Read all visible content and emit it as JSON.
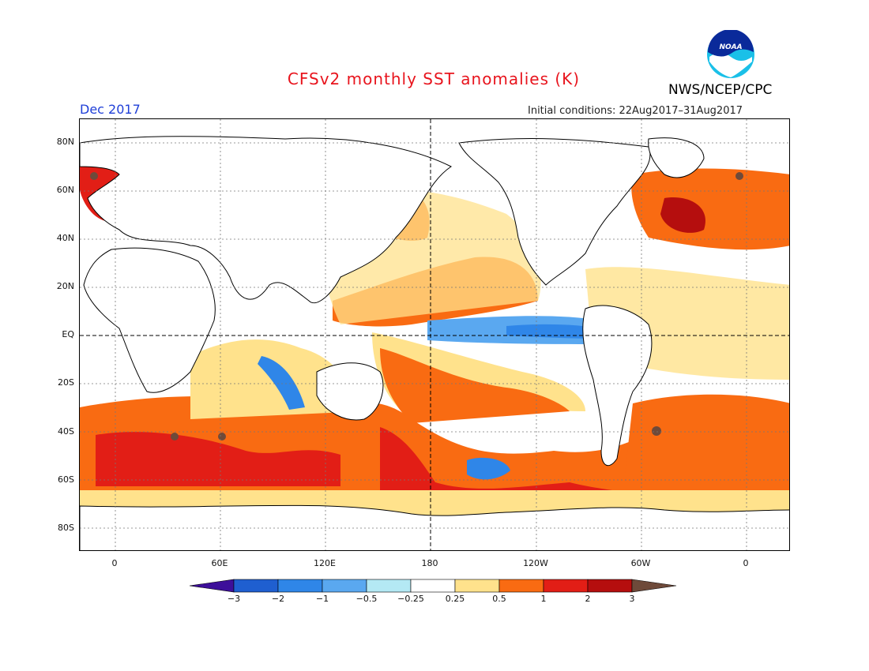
{
  "title": "CFSv2 monthly SST anomalies (K)",
  "agency": "NWS/NCEP/CPC",
  "logo_text": "NOAA",
  "valid_month": "Dec 2017",
  "initial_conditions": "Initial conditions: 22Aug2017–31Aug2017",
  "lat_labels": [
    "80N",
    "60N",
    "40N",
    "20N",
    "EQ",
    "20S",
    "40S",
    "60S",
    "80S"
  ],
  "lon_labels": [
    "0",
    "60E",
    "120E",
    "180",
    "120W",
    "60W",
    "0"
  ],
  "colorbar": {
    "tick_labels": [
      "−3",
      "−2",
      "−1",
      "−0.5",
      "−0.25",
      "0.25",
      "0.5",
      "1",
      "2",
      "3"
    ],
    "colors": [
      "#3d0f9a",
      "#1f5fd0",
      "#2f86e8",
      "#5aa8f0",
      "#b4e9f4",
      "#ffffff",
      "#ffe28c",
      "#f96b12",
      "#e21e16",
      "#b50e0e",
      "#6e4a3a"
    ]
  },
  "map": {
    "projection": "cylindrical equidistant",
    "center_longitude": "180",
    "reference_lines": [
      "Equator (dashed)",
      "Dateline 180 (dashed)"
    ],
    "grid": "dotted at 20° latitude, 60° longitude"
  }
}
